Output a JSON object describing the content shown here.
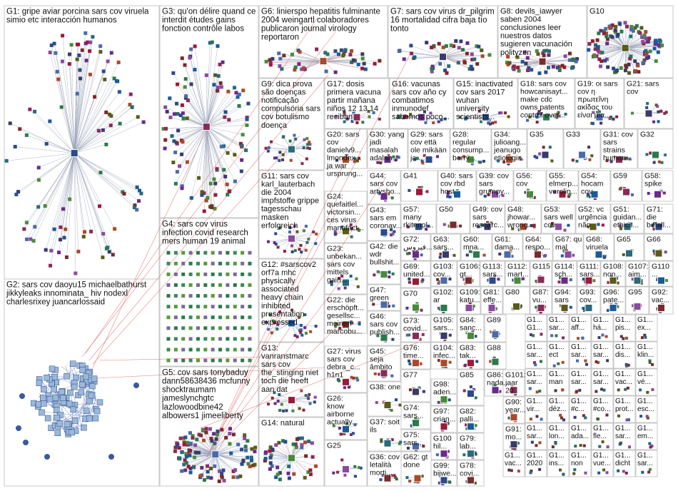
{
  "groups": [
    {
      "id": "G1",
      "lines": [
        "G1: gripe aviar porcina sars cov viruela",
        "simio etc interacción humanos"
      ]
    },
    {
      "id": "G2",
      "lines": [
        "G2: sars cov daoyu15 michaelbathurst",
        "jikkyleaks innominata_ hiv nodexl",
        "charlesrixey juancarlossaid"
      ]
    },
    {
      "id": "G3",
      "lines": [
        "G3: qu'on délire quand ce",
        "interdit études gains",
        "fonction contrôle labos"
      ]
    },
    {
      "id": "G4",
      "lines": [
        "G4: sars cov virus",
        "infection covid research",
        "mers human 19 animal"
      ]
    },
    {
      "id": "G5",
      "lines": [
        "G5: cov sars tonybaduy",
        "dann58638436 mcfunny",
        "shocktraumam",
        "jameslynchgtc",
        "lazlowoodbine42",
        "albowers1 jimeeliberty"
      ]
    },
    {
      "id": "G6",
      "lines": [
        "G6: linierspo hepatitis fulminante",
        "2004 weingartl colaboradores",
        "publicaron journal virology",
        "reportaron"
      ]
    },
    {
      "id": "G7",
      "lines": [
        "G7: sars cov virus dr_pilgrim",
        "16 mortalidad cifra baja tío",
        "tonto"
      ]
    },
    {
      "id": "G8",
      "lines": [
        "G8: devils_iawyer",
        "saben 2004",
        "conclusiones leer",
        "nuestros datos",
        "sugieren vacunación",
        "polityzen"
      ]
    },
    {
      "id": "G9",
      "lines": [
        "G9: dica prova",
        "são doenças",
        "notificação",
        "compulsória sars",
        "cov botulismo",
        "doença"
      ]
    },
    {
      "id": "G10",
      "lines": [
        "G10"
      ]
    },
    {
      "id": "G11",
      "lines": [
        "G11: sars cov",
        "karl_lauterbach",
        "die 2004",
        "impfstoffe grippe",
        "tagesschau",
        "masken",
        "erfolgreich"
      ]
    },
    {
      "id": "G12",
      "lines": [
        "G12: #sarscov2",
        "orf7a mhc",
        "physically",
        "associated",
        "heavy chain",
        "inhibited",
        "presentation",
        "expressed"
      ]
    },
    {
      "id": "G13",
      "lines": [
        "G13:",
        "vanranstmarc",
        "sars cov",
        "the_stinging niet",
        "toch die heeft",
        "aan dat"
      ]
    },
    {
      "id": "G14",
      "lines": [
        "G14: natural"
      ]
    },
    {
      "id": "G15",
      "lines": [
        "G15: inactivated",
        "cov sars 2017",
        "wuhan",
        "university",
        "scientists..."
      ]
    },
    {
      "id": "G16",
      "lines": [
        "G16: vacunas",
        "sars cov año cy",
        "combatimos",
        "inmunodef",
        "sabemos poco..."
      ]
    },
    {
      "id": "G17",
      "lines": [
        "G17: dosis",
        "primera vacuna",
        "partir mañana",
        "niños 12 13 14",
        "reciban"
      ]
    },
    {
      "id": "G18",
      "lines": [
        "G18: sars cov",
        "howcanisayt...",
        "make cdc",
        "owns patents",
        "control over..."
      ]
    },
    {
      "id": "G19",
      "lines": [
        "G19: οι sars",
        "cov η",
        "πρωτεΐνη",
        "ακίδας του",
        "είναι μια..."
      ]
    },
    {
      "id": "G20",
      "lines": [
        "G20: sars",
        "cov",
        "danielv9...",
        "lmondex...",
        "ja war",
        "ursprung..."
      ]
    },
    {
      "id": "G21",
      "lines": [
        "G21: sars",
        "cov"
      ]
    },
    {
      "id": "G22",
      "lines": [
        "G22: die",
        "erschöpft...",
        "gesellsc...",
        "meinen",
        "marcobu..."
      ]
    },
    {
      "id": "G23",
      "lines": [
        "G23:",
        "unbekan...",
        "sars cov",
        "mittels",
        "gain..."
      ]
    },
    {
      "id": "G24",
      "lines": [
        "G24:",
        "quefaitlel...",
        "victorsin...",
        "ces virus",
        "manufact..."
      ]
    },
    {
      "id": "G25",
      "lines": [
        "G25"
      ]
    },
    {
      "id": "G26",
      "lines": [
        "G26:",
        "know",
        "airborne",
        "actually..."
      ]
    },
    {
      "id": "G27",
      "lines": [
        "G27: virus",
        "sars cov",
        "debra_c...",
        "h1n1"
      ]
    },
    {
      "id": "G28",
      "lines": [
        "G28:",
        "regular",
        "consump...",
        "berry..."
      ]
    },
    {
      "id": "G29",
      "lines": [
        "G29: sars",
        "cov että",
        "ole mikään",
        "ja..."
      ]
    },
    {
      "id": "G30",
      "lines": [
        "G30: yang",
        "jadi",
        "masalah",
        "adalah..."
      ]
    },
    {
      "id": "G31",
      "lines": [
        "G31: cov",
        "sars",
        "strains",
        "human..."
      ]
    },
    {
      "id": "G32",
      "lines": [
        "G32"
      ]
    },
    {
      "id": "G33",
      "lines": [
        "G33"
      ]
    },
    {
      "id": "G34",
      "lines": [
        "G34:",
        "julioang...",
        "jeanugo",
        "etiologi..."
      ]
    },
    {
      "id": "G35",
      "lines": [
        "G35"
      ]
    },
    {
      "id": "G36",
      "lines": [
        "G36: cov",
        "letalità",
        "morti..."
      ]
    },
    {
      "id": "G37",
      "lines": [
        "G37: soit",
        "ils"
      ]
    },
    {
      "id": "G38",
      "lines": [
        "G38: one"
      ]
    },
    {
      "id": "G39",
      "lines": [
        "G39: cov",
        "sars",
        "grumpy..."
      ]
    },
    {
      "id": "G40",
      "lines": [
        "G40: sars",
        "cov rbd",
        "host"
      ]
    },
    {
      "id": "G41",
      "lines": [
        "G41"
      ]
    },
    {
      "id": "G42",
      "lines": [
        "G42: die",
        "wdr",
        "bullshit..."
      ]
    },
    {
      "id": "G43",
      "lines": [
        "G43:",
        "sars em",
        "coronav..."
      ]
    },
    {
      "id": "G44",
      "lines": [
        "G44:",
        "sars cov",
        "artysho..."
      ]
    },
    {
      "id": "G45",
      "lines": [
        "G45:",
        "seja",
        "âmbito"
      ]
    },
    {
      "id": "G46",
      "lines": [
        "G46:",
        "sars cov",
        "publish..."
      ]
    },
    {
      "id": "G47",
      "lines": [
        "G47:",
        "green"
      ]
    },
    {
      "id": "G48",
      "lines": [
        "G48:",
        "jhowar...",
        "wrong..."
      ]
    },
    {
      "id": "G49",
      "lines": [
        "G49: cov",
        "sars",
        "researc..."
      ]
    },
    {
      "id": "G50",
      "lines": [
        "G50"
      ]
    },
    {
      "id": "G51",
      "lines": [
        "G51:",
        "guidan...",
        "ethics..."
      ]
    },
    {
      "id": "G52",
      "lines": [
        "G52: vc",
        "urgência",
        "não"
      ]
    },
    {
      "id": "G53",
      "lines": [
        "G53:",
        "sars well",
        "cov"
      ]
    },
    {
      "id": "G54",
      "lines": [
        "G54:",
        "hocam",
        "cov"
      ]
    },
    {
      "id": "G55",
      "lines": [
        "G55:",
        "elmerp...",
        "verolin..."
      ]
    },
    {
      "id": "G56",
      "lines": [
        "G56:",
        "cov"
      ]
    },
    {
      "id": "G57",
      "lines": [
        "G57:",
        "many",
        "rkitenpl..."
      ]
    },
    {
      "id": "G58",
      "lines": [
        "G58:",
        "spike"
      ]
    },
    {
      "id": "G59",
      "lines": [
        "G59"
      ]
    },
    {
      "id": "G60",
      "lines": [
        "G60:",
        "mna..."
      ]
    },
    {
      "id": "G61",
      "lines": [
        "G61:",
        "dama..."
      ]
    },
    {
      "id": "G62",
      "lines": [
        "G62: gt",
        "done"
      ]
    },
    {
      "id": "G63",
      "lines": [
        "G63:",
        "sars..."
      ]
    },
    {
      "id": "G64",
      "lines": [
        "G64:",
        "respo..."
      ]
    },
    {
      "id": "G65",
      "lines": [
        "G65"
      ]
    },
    {
      "id": "G66",
      "lines": [
        "G66"
      ]
    },
    {
      "id": "G67",
      "lines": [
        "G67: qu",
        "mal"
      ]
    },
    {
      "id": "G68",
      "lines": [
        "G68:",
        "viruela"
      ]
    },
    {
      "id": "G69",
      "lines": [
        "G69:",
        "united..."
      ]
    },
    {
      "id": "G70",
      "lines": [
        "G70"
      ]
    },
    {
      "id": "G71",
      "lines": [
        "G71:",
        "die",
        "befall..."
      ]
    },
    {
      "id": "G72",
      "lines": [
        "G72:",
        "فيروس..."
      ]
    },
    {
      "id": "G73",
      "lines": [
        "G73:",
        "covid..."
      ]
    },
    {
      "id": "G74",
      "lines": [
        "G74:",
        "sars..."
      ]
    },
    {
      "id": "G75",
      "lines": [
        "G75:",
        "sars..."
      ]
    },
    {
      "id": "G76",
      "lines": [
        "G76:",
        "time..."
      ]
    },
    {
      "id": "G77",
      "lines": [
        "G77"
      ]
    },
    {
      "id": "G78",
      "lines": [
        "G78:",
        "covi..."
      ]
    },
    {
      "id": "G79",
      "lines": [
        "G79:",
        "lab..."
      ]
    },
    {
      "id": "G80",
      "lines": [
        "G80"
      ]
    },
    {
      "id": "G81",
      "lines": [
        "G81:",
        "effe..."
      ]
    },
    {
      "id": "G82",
      "lines": [
        "G82:",
        "palli..."
      ]
    },
    {
      "id": "G83",
      "lines": [
        "G83:",
        "tak..."
      ]
    },
    {
      "id": "G84",
      "lines": [
        "G84:",
        "sanc..."
      ]
    },
    {
      "id": "G85",
      "lines": [
        "G85"
      ]
    },
    {
      "id": "G86",
      "lines": [
        "G86:",
        "nada..."
      ]
    },
    {
      "id": "G87",
      "lines": [
        "G87:",
        "vu..."
      ]
    },
    {
      "id": "G88",
      "lines": [
        "G88"
      ]
    },
    {
      "id": "G89",
      "lines": [
        "G89"
      ]
    },
    {
      "id": "G90",
      "lines": [
        "G90:",
        "year..."
      ]
    },
    {
      "id": "G91",
      "lines": [
        "G91:",
        "mo..."
      ]
    },
    {
      "id": "G92",
      "lines": [
        "G92:",
        "vac..."
      ]
    },
    {
      "id": "G93",
      "lines": [
        "G93:",
        "cov..."
      ]
    },
    {
      "id": "G94",
      "lines": [
        "G94:",
        "sars"
      ]
    },
    {
      "id": "G95",
      "lines": [
        "G95"
      ]
    },
    {
      "id": "G96",
      "lines": [
        "G96:",
        "pate..."
      ]
    },
    {
      "id": "G97",
      "lines": [
        "G97:",
        "crian..."
      ]
    },
    {
      "id": "G98",
      "lines": [
        "G98:",
        "aden..."
      ]
    },
    {
      "id": "G99",
      "lines": [
        "G99:",
        "bijwe..."
      ]
    },
    {
      "id": "G100",
      "lines": [
        "G100",
        "hil..."
      ]
    },
    {
      "id": "G101",
      "lines": [
        "G101:",
        "jaar",
        "20"
      ]
    },
    {
      "id": "G102",
      "lines": [
        "G102:",
        "ar"
      ]
    },
    {
      "id": "G103",
      "lines": [
        "G103:",
        "cov..."
      ]
    },
    {
      "id": "G104",
      "lines": [
        "G104:",
        "infec..."
      ]
    },
    {
      "id": "G105",
      "lines": [
        "G105:",
        "sars..."
      ]
    },
    {
      "id": "G106",
      "lines": [
        "G106:",
        "gt..."
      ]
    },
    {
      "id": "G107",
      "lines": [
        "G107:",
        "aim..."
      ]
    },
    {
      "id": "G108",
      "lines": [
        "G108:",
        "non..."
      ]
    },
    {
      "id": "G109",
      "lines": [
        "G109:",
        "katu..."
      ]
    },
    {
      "id": "G110",
      "lines": [
        "G110",
        "..."
      ]
    },
    {
      "id": "G111",
      "lines": [
        "G111:",
        "sars..."
      ]
    },
    {
      "id": "G112",
      "lines": [
        "G112:",
        "mart..."
      ]
    },
    {
      "id": "G113",
      "lines": [
        "G113:",
        "sars..."
      ]
    },
    {
      "id": "G114",
      "lines": [
        "G114:",
        "sch..."
      ]
    },
    {
      "id": "G115",
      "lines": [
        "G115"
      ]
    },
    {
      "id": "G1xx",
      "lines": [
        "G1...",
        "sar...",
        "aff...",
        "há...",
        "pis...",
        "ex...",
        "sar...",
        "ect",
        "sar...",
        "sar...",
        "dis...",
        "klin...",
        "sar...",
        "man",
        "sar...",
        "sar...",
        "vac...",
        "vé...",
        "vir...",
        "déz...",
        "#c...",
        "#co...",
        "prot...",
        "esc...",
        "sar...",
        "lon...",
        "ada...",
        "fle...",
        "sar...",
        "em...",
        "vac...",
        "2020",
        "ins...",
        "non",
        "vue...",
        "dicht",
        "sar...",
        "ad...",
        "mal...",
        "...",
        "viru...",
        "tu...",
        "ma...",
        "sar...",
        "toluj...",
        "ins..."
      ]
    }
  ]
}
